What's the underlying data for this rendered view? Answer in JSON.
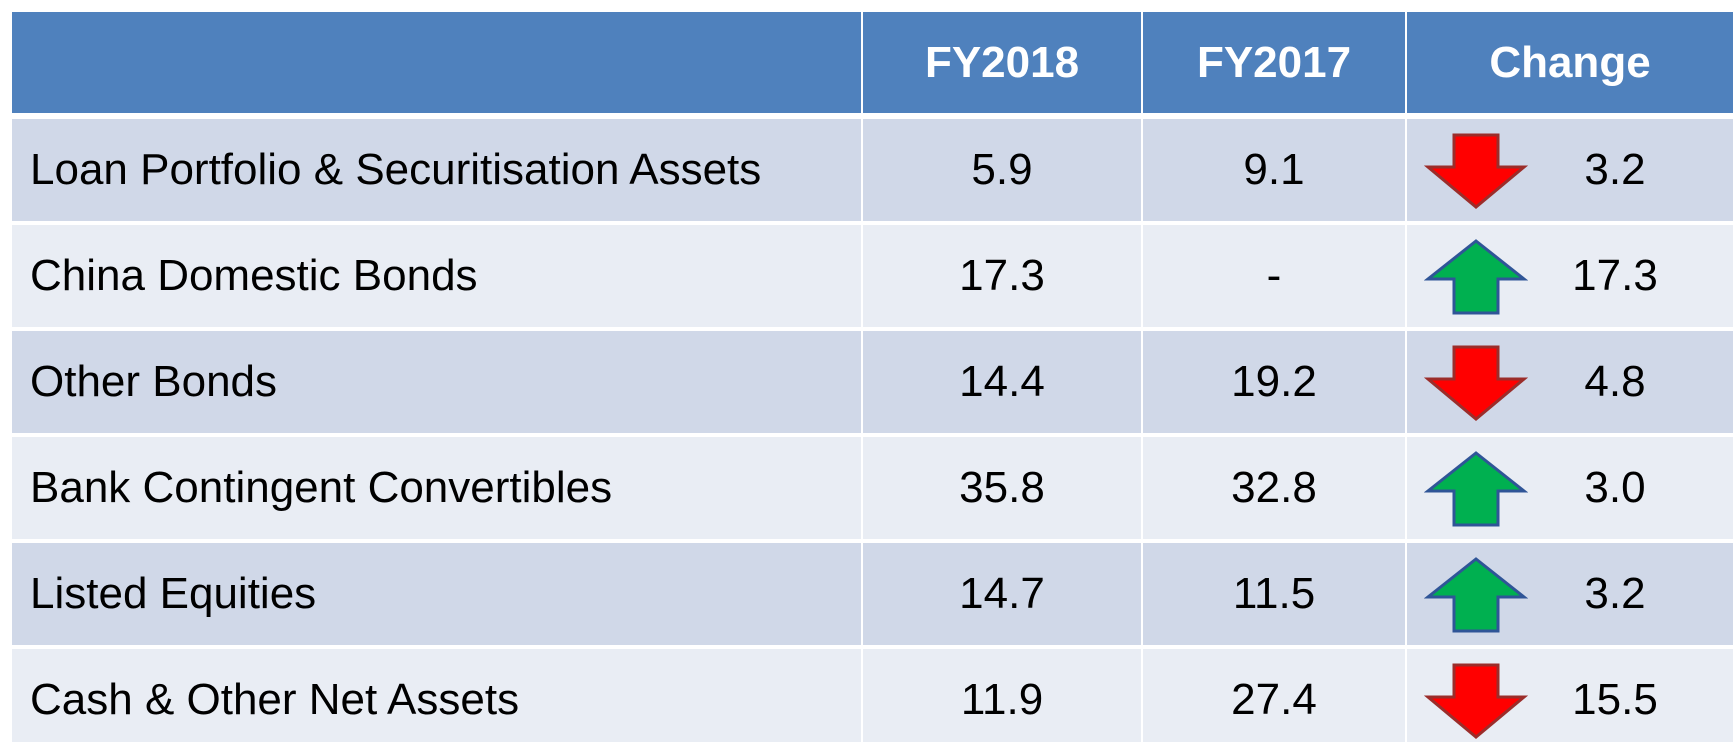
{
  "table": {
    "header": [
      "FY2018",
      "FY2017",
      "Change"
    ],
    "rows": [
      {
        "label": "Loan Portfolio & Securitisation Assets",
        "fy2018": "5.9",
        "fy2017": "9.1",
        "change": "3.2",
        "trend": "down"
      },
      {
        "label": "China Domestic Bonds",
        "fy2018": "17.3",
        "fy2017": "-",
        "change": "17.3",
        "trend": "up"
      },
      {
        "label": "Other Bonds",
        "fy2018": "14.4",
        "fy2017": "19.2",
        "change": "4.8",
        "trend": "down"
      },
      {
        "label": "Bank Contingent Convertibles",
        "fy2018": "35.8",
        "fy2017": "32.8",
        "change": "3.0",
        "trend": "up"
      },
      {
        "label": "Listed Equities",
        "fy2018": "14.7",
        "fy2017": "11.5",
        "change": "3.2",
        "trend": "up"
      },
      {
        "label": "Cash & Other Net Assets",
        "fy2018": "11.9",
        "fy2017": "27.4",
        "change": "15.5",
        "trend": "down"
      }
    ]
  }
}
